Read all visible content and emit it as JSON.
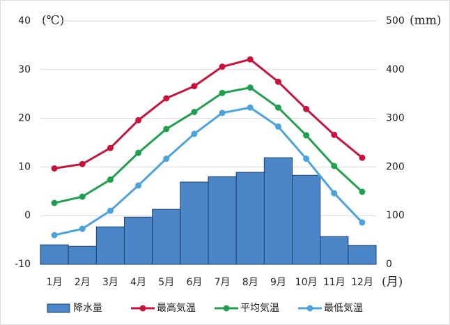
{
  "chart_data": {
    "type": "combo",
    "categories": [
      "1月",
      "2月",
      "3月",
      "4月",
      "5月",
      "6月",
      "7月",
      "8月",
      "9月",
      "10月",
      "11月",
      "12月"
    ],
    "x_unit": "(月)",
    "y_unit": "(℃)",
    "y2_unit": "(mm)",
    "ylim": [
      -10,
      40
    ],
    "yticks": [
      -10,
      0,
      10,
      20,
      30,
      40
    ],
    "y2lim": [
      0,
      500
    ],
    "y2ticks": [
      0,
      100,
      200,
      300,
      400,
      500
    ],
    "grid": true,
    "legend": "bottom",
    "series": [
      {
        "name": "降水量",
        "type": "bar",
        "axis": "y2",
        "color": "#4a86c8",
        "values": [
          40,
          37,
          77,
          97,
          113,
          169,
          180,
          189,
          219,
          183,
          57,
          39
        ]
      },
      {
        "name": "最高気温",
        "type": "line",
        "color": "#c8143c",
        "values": [
          9.7,
          10.6,
          13.9,
          19.6,
          24.1,
          26.6,
          30.6,
          32.1,
          27.5,
          21.9,
          16.6,
          11.9
        ]
      },
      {
        "name": "平均気温",
        "type": "line",
        "color": "#1fa050",
        "values": [
          2.6,
          3.9,
          7.4,
          12.9,
          17.8,
          21.3,
          25.2,
          26.3,
          22.2,
          16.5,
          10.2,
          4.9
        ]
      },
      {
        "name": "最低気温",
        "type": "line",
        "color": "#4ba3dc",
        "values": [
          -4.0,
          -2.7,
          1.0,
          6.2,
          11.7,
          16.8,
          21.1,
          22.2,
          18.3,
          11.7,
          4.6,
          -1.4
        ]
      }
    ]
  }
}
